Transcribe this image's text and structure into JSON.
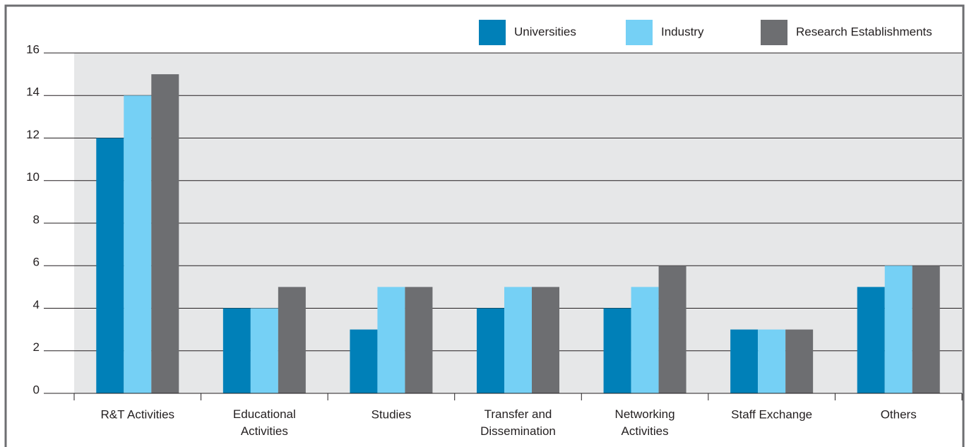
{
  "chart_data": {
    "type": "bar",
    "categories": [
      "R&T Activities",
      "Educational\nActivities",
      "Studies",
      "Transfer and\nDissemination",
      "Networking\nActivities",
      "Staff Exchange",
      "Others"
    ],
    "series": [
      {
        "name": "Universities",
        "color": "#0080b8",
        "values": [
          12,
          4,
          3,
          4,
          4,
          3,
          5
        ]
      },
      {
        "name": "Industry",
        "color": "#75d0f5",
        "values": [
          14,
          4,
          5,
          5,
          5,
          3,
          6
        ]
      },
      {
        "name": "Research Establishments",
        "color": "#6d6e71",
        "values": [
          15,
          5,
          5,
          5,
          6,
          3,
          6
        ]
      }
    ],
    "ylim": [
      0,
      16
    ],
    "yticks": [
      0,
      2,
      4,
      6,
      8,
      10,
      12,
      14,
      16
    ],
    "grid": true,
    "legend": "top-right"
  }
}
